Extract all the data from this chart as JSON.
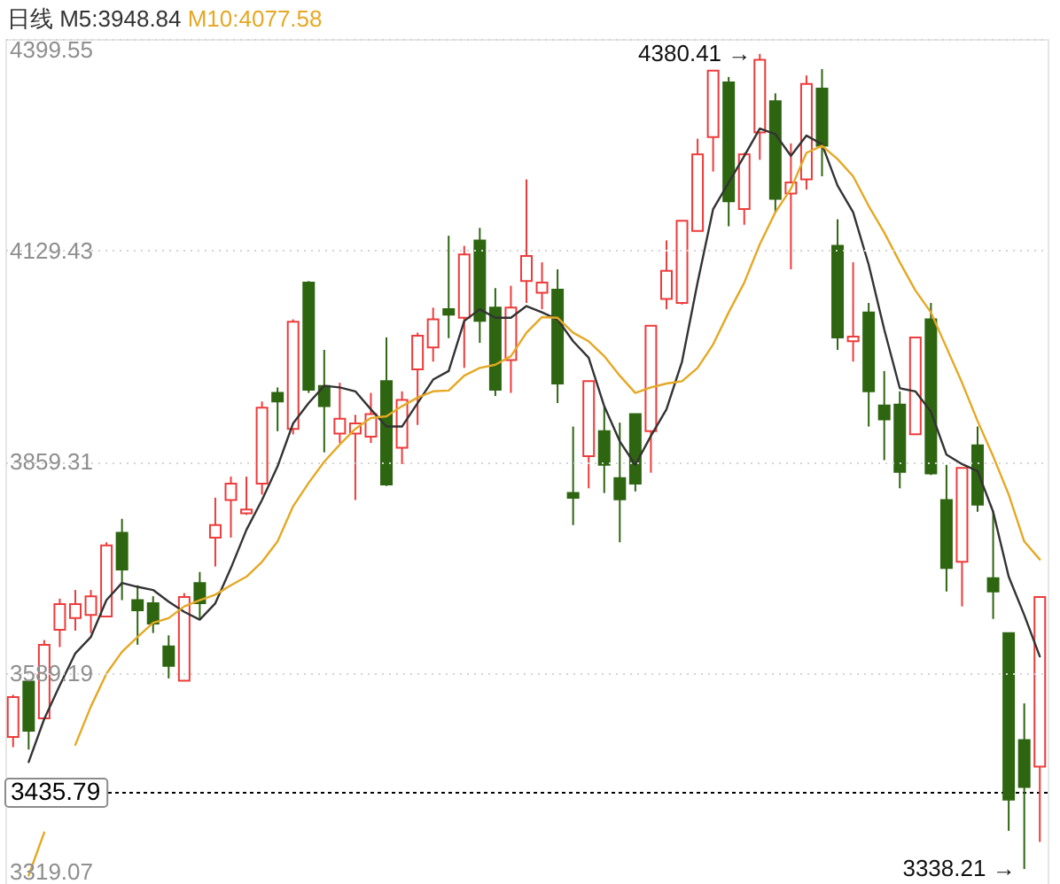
{
  "chart_data": {
    "type": "candlestick",
    "title": "日线",
    "categories": [
      null,
      null,
      null,
      null,
      null,
      null,
      null,
      null,
      null,
      null,
      null,
      null,
      null,
      null,
      null,
      null,
      null,
      null,
      null,
      null,
      null,
      null,
      null,
      null,
      null,
      null,
      null,
      null,
      null,
      null,
      null,
      null,
      null,
      null,
      null,
      null,
      null,
      null,
      null,
      null,
      null,
      null,
      null,
      null,
      null,
      null,
      null,
      null,
      null,
      null,
      null,
      null,
      null,
      null,
      null,
      null,
      null,
      null,
      null,
      null,
      null,
      null,
      null,
      null,
      null,
      null,
      null
    ],
    "ohlc": [
      [
        3507,
        3561,
        3494,
        3558
      ],
      [
        3578,
        3580,
        3491,
        3515
      ],
      [
        3531,
        3631,
        3531,
        3625
      ],
      [
        3644,
        3684,
        3622,
        3677
      ],
      [
        3659,
        3695,
        3643,
        3677
      ],
      [
        3663,
        3695,
        3640,
        3687
      ],
      [
        3661,
        3756,
        3661,
        3752
      ],
      [
        3768,
        3786,
        3682,
        3721
      ],
      [
        3682,
        3701,
        3625,
        3669
      ],
      [
        3678,
        3687,
        3640,
        3652
      ],
      [
        3623,
        3637,
        3582,
        3598
      ],
      [
        3579,
        3691,
        3579,
        3686
      ],
      [
        3704,
        3718,
        3659,
        3678
      ],
      [
        3762,
        3813,
        3725,
        3778
      ],
      [
        3810,
        3840,
        3762,
        3831
      ],
      [
        3793,
        3840,
        3791,
        3798
      ],
      [
        3831,
        3936,
        3817,
        3928
      ],
      [
        3947,
        3954,
        3898,
        3936
      ],
      [
        3901,
        4041,
        3894,
        4038
      ],
      [
        4088,
        4090,
        3947,
        3951
      ],
      [
        3956,
        4002,
        3871,
        3930
      ],
      [
        3895,
        3960,
        3883,
        3914
      ],
      [
        3895,
        3919,
        3810,
        3908
      ],
      [
        3891,
        3947,
        3883,
        3920
      ],
      [
        3962,
        4018,
        3828,
        3830
      ],
      [
        3877,
        3949,
        3856,
        3938
      ],
      [
        3977,
        4024,
        3906,
        4020
      ],
      [
        4005,
        4056,
        3987,
        4041
      ],
      [
        4054,
        4148,
        4017,
        4047
      ],
      [
        4043,
        4135,
        3979,
        4124
      ],
      [
        4142,
        4158,
        4011,
        4039
      ],
      [
        4056,
        4081,
        3943,
        3951
      ],
      [
        3989,
        4084,
        3947,
        4056
      ],
      [
        4090,
        4220,
        4062,
        4122
      ],
      [
        4075,
        4114,
        4054,
        4088
      ],
      [
        4079,
        4105,
        3934,
        3959
      ],
      [
        3819,
        3904,
        3778,
        3813
      ],
      [
        3866,
        3962,
        3825,
        3962
      ],
      [
        3898,
        3929,
        3819,
        3855
      ],
      [
        3838,
        3909,
        3756,
        3811
      ],
      [
        3920,
        3920,
        3821,
        3831
      ],
      [
        3898,
        4033,
        3845,
        4033
      ],
      [
        4067,
        4142,
        4054,
        4103
      ],
      [
        4062,
        4167,
        4060,
        4167
      ],
      [
        4154,
        4272,
        4154,
        4252
      ],
      [
        4274,
        4359,
        4230,
        4359
      ],
      [
        4344,
        4351,
        4160,
        4192
      ],
      [
        4182,
        4254,
        4162,
        4252
      ],
      [
        4280,
        4380.41,
        4245,
        4373
      ],
      [
        4320,
        4330,
        4177,
        4195
      ],
      [
        4202,
        4266,
        4105,
        4216
      ],
      [
        4220,
        4353,
        4207,
        4342
      ],
      [
        4336,
        4361,
        4224,
        4263
      ],
      [
        4135,
        4169,
        4002,
        4018
      ],
      [
        4013,
        4114,
        3987,
        4019
      ],
      [
        4050,
        4062,
        3904,
        3949
      ],
      [
        3931,
        3975,
        3861,
        3913
      ],
      [
        3932,
        3949,
        3825,
        3846
      ],
      [
        3894,
        4018,
        3894,
        4018
      ],
      [
        4041,
        4062,
        3842,
        3844
      ],
      [
        3810,
        3855,
        3693,
        3723
      ],
      [
        3731,
        3851,
        3674,
        3851
      ],
      [
        3880,
        3904,
        3795,
        3804
      ],
      [
        3710,
        3796,
        3658,
        3693
      ],
      [
        3640,
        3640,
        3387,
        3427
      ],
      [
        3503,
        3550,
        3338.21,
        3443
      ],
      [
        3469,
        3686,
        3373,
        3686
      ]
    ],
    "colors": [
      "#ee3b3b",
      "#2e6511",
      "#ee3b3b",
      "#ee3b3b",
      "#ee3b3b",
      "#ee3b3b",
      "#ee3b3b",
      "#2e6511",
      "#2e6511",
      "#2e6511",
      "#2e6511",
      "#ee3b3b",
      "#2e6511",
      "#ee3b3b",
      "#ee3b3b",
      "#ee3b3b",
      "#ee3b3b",
      "#2e6511",
      "#ee3b3b",
      "#2e6511",
      "#2e6511",
      "#ee3b3b",
      "#ee3b3b",
      "#ee3b3b",
      "#2e6511",
      "#ee3b3b",
      "#ee3b3b",
      "#ee3b3b",
      "#2e6511",
      "#ee3b3b",
      "#2e6511",
      "#2e6511",
      "#ee3b3b",
      "#ee3b3b",
      "#ee3b3b",
      "#2e6511",
      "#2e6511",
      "#ee3b3b",
      "#2e6511",
      "#2e6511",
      "#2e6511",
      "#ee3b3b",
      "#ee3b3b",
      "#ee3b3b",
      "#ee3b3b",
      "#ee3b3b",
      "#2e6511",
      "#ee3b3b",
      "#ee3b3b",
      "#2e6511",
      "#ee3b3b",
      "#ee3b3b",
      "#2e6511",
      "#2e6511",
      "#ee3b3b",
      "#2e6511",
      "#2e6511",
      "#2e6511",
      "#ee3b3b",
      "#2e6511",
      "#2e6511",
      "#ee3b3b",
      "#2e6511",
      "#2e6511",
      "#2e6511",
      "#2e6511",
      "#ee3b3b"
    ],
    "series": [
      {
        "name": "M5:3948.84",
        "type": "line",
        "color": "#333333",
        "values": [
          null,
          3475,
          3530,
          3573,
          3614,
          3635,
          3682,
          3704,
          3699,
          3695,
          3680,
          3667,
          3657,
          3678,
          3723,
          3772,
          3810,
          3853,
          3908,
          3934,
          3956,
          3954,
          3949,
          3926,
          3904,
          3904,
          3934,
          3964,
          3975,
          4039,
          4054,
          4043,
          4043,
          4058,
          4050,
          4041,
          4013,
          3992,
          3930,
          3885,
          3855,
          3892,
          3926,
          3987,
          4088,
          4182,
          4216,
          4250,
          4285,
          4278,
          4250,
          4276,
          4265,
          4212,
          4178,
          4111,
          4028,
          3953,
          3949,
          3923,
          3868,
          3856,
          3847,
          3795,
          3712,
          3663,
          3610
        ]
      },
      {
        "name": "M10:4077.58",
        "type": "line",
        "color": "#e5a823",
        "values": [
          null,
          3330,
          3385,
          null,
          3497,
          3546,
          3588,
          3616,
          3635,
          3653,
          3659,
          3674,
          3682,
          3689,
          3701,
          3712,
          3731,
          3757,
          3802,
          3832,
          3859,
          3881,
          3901,
          3915,
          3917,
          3930,
          3941,
          3949,
          3950,
          3969,
          3979,
          3983,
          3994,
          4024,
          4044,
          4043,
          4024,
          4013,
          3994,
          3969,
          3947,
          3954,
          3959,
          3962,
          3979,
          4009,
          4050,
          4088,
          4137,
          4178,
          4208,
          4254,
          4263,
          4246,
          4224,
          4186,
          4152,
          4114,
          4078,
          4050,
          4005,
          3960,
          3911,
          3866,
          3817,
          3757,
          3734
        ]
      }
    ],
    "ylim": [
      3319.07,
      4399.55
    ],
    "yticks": [
      3319.07,
      3589.19,
      3859.31,
      4129.43,
      4399.55
    ],
    "grid": "y",
    "tick_labels": "y",
    "legend": "top left",
    "ref_lines": [
      {
        "axis": "y",
        "value": 3435.79,
        "label": "3435.79",
        "color": "#000000",
        "line_style": "dotted"
      }
    ],
    "annotations": [
      "4380.41 →",
      "3338.21 →"
    ]
  }
}
